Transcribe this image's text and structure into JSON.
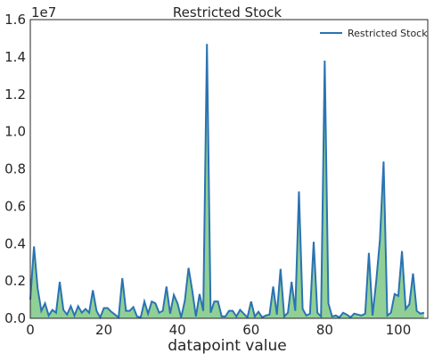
{
  "chart_data": {
    "type": "area",
    "title": "Restricted Stock",
    "xlabel": "datapoint value",
    "ylabel": "",
    "y_offset_label": "1e7",
    "xlim": [
      0,
      108
    ],
    "ylim": [
      0,
      16000000
    ],
    "x_ticks": [
      0,
      20,
      40,
      60,
      80,
      100
    ],
    "y_ticks": [
      0,
      2000000,
      4000000,
      6000000,
      8000000,
      10000000,
      12000000,
      14000000,
      16000000
    ],
    "y_tick_labels": [
      "0.0",
      "0.2",
      "0.4",
      "0.6",
      "0.8",
      "1.0",
      "1.2",
      "1.4",
      "1.6"
    ],
    "x_tick_labels": [
      "0",
      "20",
      "40",
      "60",
      "80",
      "100"
    ],
    "grid": false,
    "legend_position": "top-right",
    "line_color": "#2a73b2",
    "fill_color": "#90d096",
    "series": [
      {
        "name": "Restricted Stock",
        "x": [
          0,
          1,
          2,
          3,
          4,
          5,
          6,
          7,
          8,
          9,
          10,
          11,
          12,
          13,
          14,
          15,
          16,
          17,
          18,
          19,
          20,
          21,
          22,
          23,
          24,
          25,
          26,
          27,
          28,
          29,
          30,
          31,
          32,
          33,
          34,
          35,
          36,
          37,
          38,
          39,
          40,
          41,
          42,
          43,
          44,
          45,
          46,
          47,
          48,
          49,
          50,
          51,
          52,
          53,
          54,
          55,
          56,
          57,
          58,
          59,
          60,
          61,
          62,
          63,
          64,
          65,
          66,
          67,
          68,
          69,
          70,
          71,
          72,
          73,
          74,
          75,
          76,
          77,
          78,
          79,
          80,
          81,
          82,
          83,
          84,
          85,
          86,
          87,
          88,
          89,
          90,
          91,
          92,
          93,
          94,
          95,
          96,
          97,
          98,
          99,
          100,
          101,
          102,
          103,
          104,
          105,
          106,
          107
        ],
        "values": [
          1000000,
          3850000,
          1600000,
          400000,
          800000,
          150000,
          450000,
          300000,
          1950000,
          450000,
          200000,
          650000,
          150000,
          650000,
          300000,
          500000,
          300000,
          1500000,
          400000,
          50000,
          550000,
          550000,
          350000,
          200000,
          50000,
          2150000,
          400000,
          400000,
          600000,
          100000,
          50000,
          900000,
          250000,
          900000,
          800000,
          300000,
          400000,
          1700000,
          250000,
          1250000,
          800000,
          50000,
          950000,
          2700000,
          1500000,
          100000,
          1300000,
          400000,
          14700000,
          300000,
          900000,
          900000,
          100000,
          100000,
          400000,
          400000,
          100000,
          450000,
          250000,
          50000,
          900000,
          100000,
          350000,
          50000,
          150000,
          200000,
          1700000,
          200000,
          2650000,
          100000,
          300000,
          1950000,
          400000,
          6800000,
          500000,
          150000,
          250000,
          4100000,
          300000,
          100000,
          13800000,
          800000,
          100000,
          150000,
          50000,
          300000,
          200000,
          50000,
          250000,
          200000,
          150000,
          250000,
          3500000,
          150000,
          2000000,
          4200000,
          8400000,
          150000,
          300000,
          1300000,
          1200000,
          3600000,
          500000,
          750000,
          2400000,
          400000,
          250000,
          300000
        ]
      }
    ]
  }
}
